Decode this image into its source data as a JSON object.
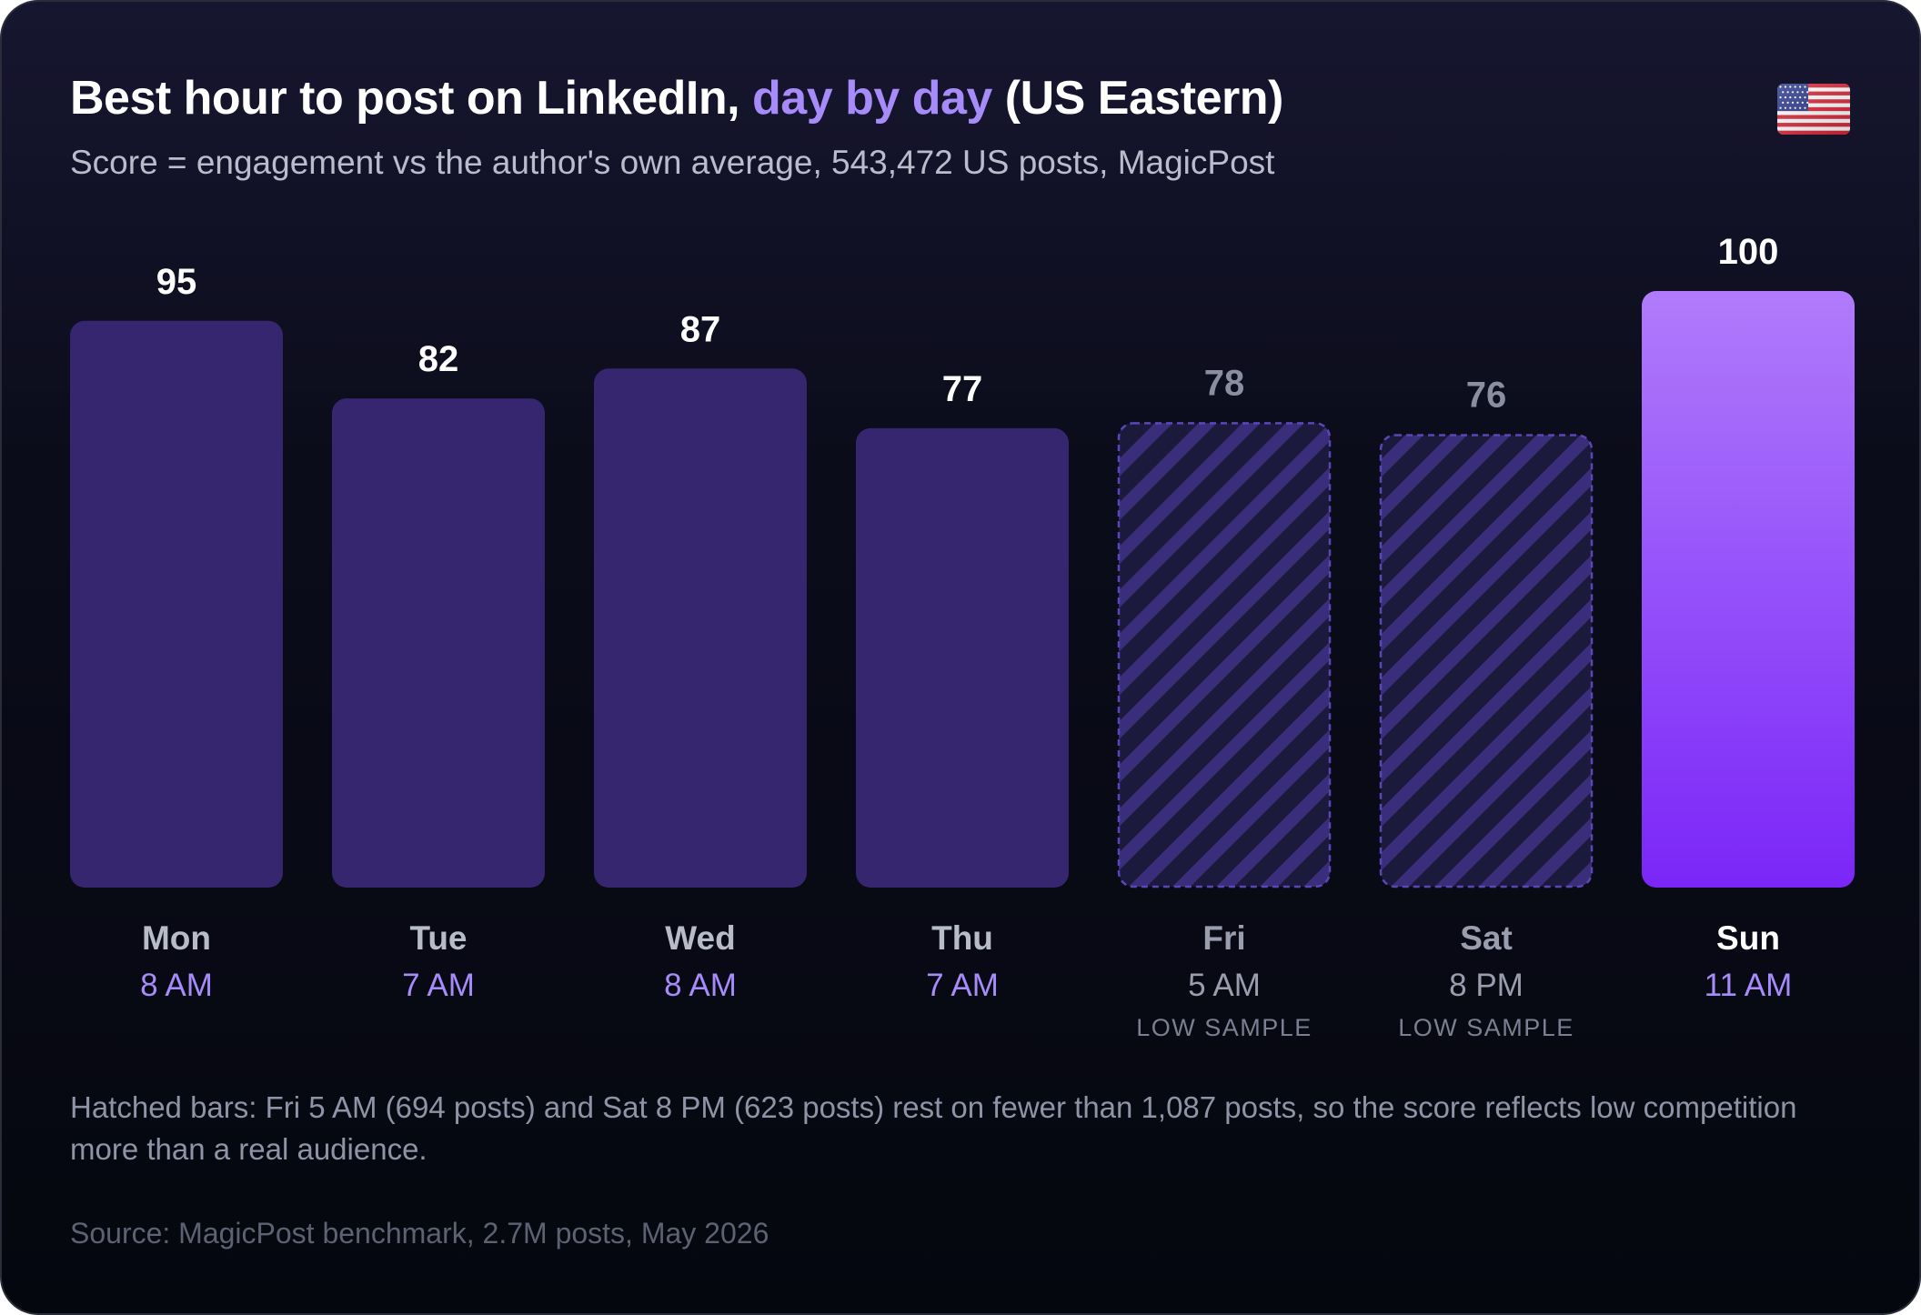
{
  "header": {
    "title_prefix": "Best hour to post on LinkedIn, ",
    "title_highlight": "day by day",
    "title_suffix": " (US Eastern)",
    "subtitle": "Score = engagement vs the author's own average, 543,472 US posts, MagicPost",
    "flag_icon": "us-flag-icon"
  },
  "chart_data": {
    "type": "bar",
    "categories": [
      "Mon",
      "Tue",
      "Wed",
      "Thu",
      "Fri",
      "Sat",
      "Sun"
    ],
    "values": [
      95,
      82,
      87,
      77,
      78,
      76,
      100
    ],
    "hours": [
      "8 AM",
      "7 AM",
      "8 AM",
      "7 AM",
      "5 AM",
      "8 PM",
      "11 AM"
    ],
    "low_sample": [
      false,
      false,
      false,
      false,
      true,
      true,
      false
    ],
    "low_sample_label": "LOW SAMPLE",
    "highlight_index": 6,
    "ylim": [
      0,
      100
    ],
    "grid": false,
    "colors": {
      "bar": "#36256f",
      "hatch_bg": "#1b1a3c",
      "hatch_stroke": "#3a2d7a",
      "hatch_border": "#5b45b8",
      "highlight_top": "#b07bfb",
      "highlight_bottom": "#7a26f8",
      "value_label": "#ffffff",
      "value_label_muted": "#8a8ea0",
      "day_label": "#b8bbc8",
      "day_label_muted": "#9a9dad",
      "hour_label": "#a78bfa",
      "hour_label_muted": "#9a9dad",
      "low_sample_text": "#7b7f91"
    }
  },
  "footer": {
    "note": "Hatched bars: Fri 5 AM (694 posts) and Sat 8 PM (623 posts) rest on fewer than 1,087 posts, so the score reflects low competition more than a real audience.",
    "source": "Source: MagicPost benchmark, 2.7M posts, May 2026"
  }
}
